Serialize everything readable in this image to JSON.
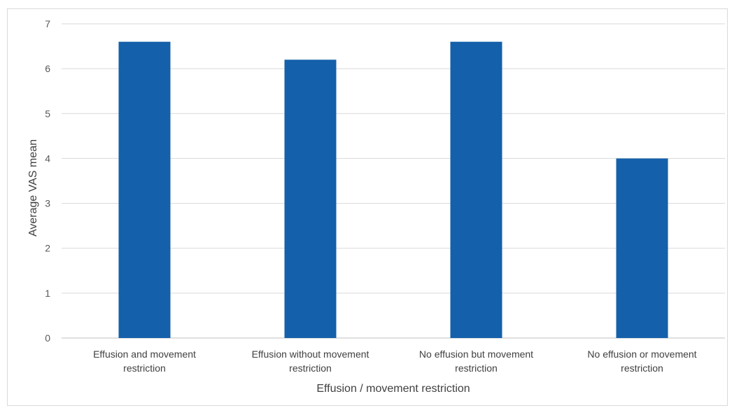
{
  "chart_data": {
    "type": "bar",
    "title": "",
    "xlabel": "Effusion / movement restriction",
    "ylabel": "Average VAS  mean",
    "ylim": [
      0,
      7
    ],
    "yticks": [
      0,
      1,
      2,
      3,
      4,
      5,
      6,
      7
    ],
    "grid": true,
    "legend": "none",
    "bar_color": "#1460aa",
    "categories": [
      [
        "Effusion and movement",
        "restriction"
      ],
      [
        "Effusion without movement",
        "restriction"
      ],
      [
        "No effusion but movement",
        "restriction"
      ],
      [
        "No effusion or movement",
        "restriction"
      ]
    ],
    "values": [
      6.6,
      6.2,
      6.6,
      4.0
    ]
  }
}
